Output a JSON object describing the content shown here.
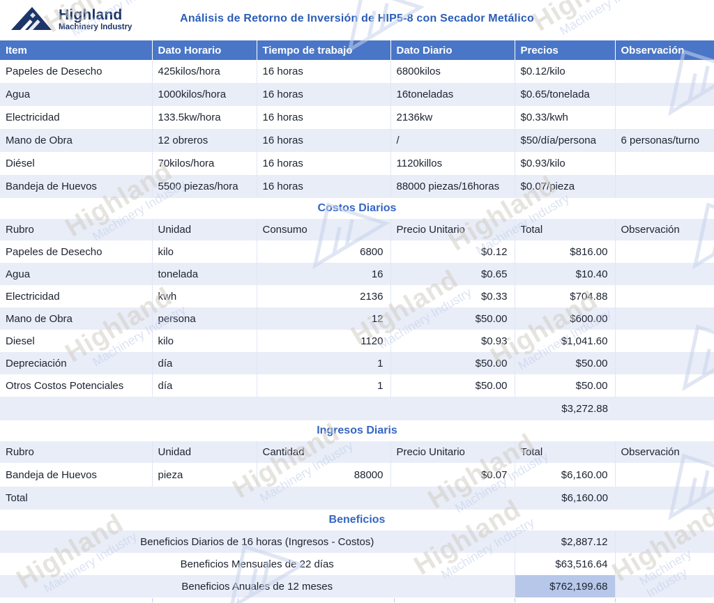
{
  "brand": {
    "name": "Highland",
    "sub": "Machinery Industry"
  },
  "title": "Análisis de Retorno de Inversión de HIP5-8 con Secador Metálico",
  "colors": {
    "header_blue": "#4a76c8",
    "row_lavender": "#e9edf8",
    "highlight_cell": "#b7c7e9",
    "title_blue": "#2a5db8",
    "section_blue": "#3566c2",
    "logo_navy": "#1d3568"
  },
  "table1": {
    "headers": [
      "Item",
      "Dato Horario",
      "Tiempo de trabajo",
      "Dato Diario",
      "Precios",
      "Observación"
    ],
    "rows": [
      [
        "Papeles de Desecho",
        "425kilos/hora",
        "16 horas",
        "6800kilos",
        "$0.12/kilo",
        ""
      ],
      [
        "Agua",
        "1000kilos/hora",
        "16 horas",
        "16toneladas",
        "$0.65/tonelada",
        ""
      ],
      [
        "Electricidad",
        "133.5kw/hora",
        "16 horas",
        "2136kw",
        "$0.33/kwh",
        ""
      ],
      [
        "Mano de Obra",
        "12 obreros",
        "16 horas",
        "/",
        "$50/día/persona",
        "6 personas/turno"
      ],
      [
        "Diésel",
        "70kilos/hora",
        "16 horas",
        "1120killos",
        "$0.93/kilo",
        ""
      ],
      [
        "Bandeja de Huevos",
        "5500 piezas/hora",
        "16 horas",
        "88000 piezas/16horas",
        "$0.07/pieza",
        ""
      ]
    ]
  },
  "costos": {
    "title": "Costos Diarios",
    "headers": [
      "Rubro",
      "Unidad",
      "Consumo",
      "Precio Unitario",
      "Total",
      "Observación"
    ],
    "rows": [
      [
        "Papeles de Desecho",
        "kilo",
        "6800",
        "$0.12",
        "$816.00",
        ""
      ],
      [
        "Agua",
        "tonelada",
        "16",
        "$0.65",
        "$10.40",
        ""
      ],
      [
        "Electricidad",
        "kwh",
        "2136",
        "$0.33",
        "$704.88",
        ""
      ],
      [
        "Mano de Obra",
        "persona",
        "12",
        "$50.00",
        "$600.00",
        ""
      ],
      [
        "Diesel",
        "kilo",
        "1120",
        "$0.93",
        "$1,041.60",
        ""
      ],
      [
        "Depreciación",
        "día",
        "1",
        "$50.00",
        "$50.00",
        ""
      ],
      [
        "Otros Costos Potenciales",
        "día",
        "1",
        "$50.00",
        "$50.00",
        ""
      ]
    ],
    "total": "$3,272.88"
  },
  "ingresos": {
    "title": "Ingresos Diaris",
    "headers": [
      "Rubro",
      "Unidad",
      "Cantidad",
      "Precio Unitario",
      "Total",
      "Observación"
    ],
    "rows": [
      [
        "Bandeja de Huevos",
        "pieza",
        "88000",
        "$0.07",
        "$6,160.00",
        ""
      ]
    ],
    "total_label": "Total",
    "total": "$6,160.00"
  },
  "beneficios": {
    "title": "Beneficios",
    "rows": [
      {
        "label": "Beneficios Diarios de 16 horas (Ingresos - Costos)",
        "value": "$2,887.12"
      },
      {
        "label": "Beneficios Mensuales de 22 días",
        "value": "$63,516.64"
      },
      {
        "label": "Beneficios Anuales de 12 meses",
        "value": "$762,199.68"
      }
    ]
  }
}
